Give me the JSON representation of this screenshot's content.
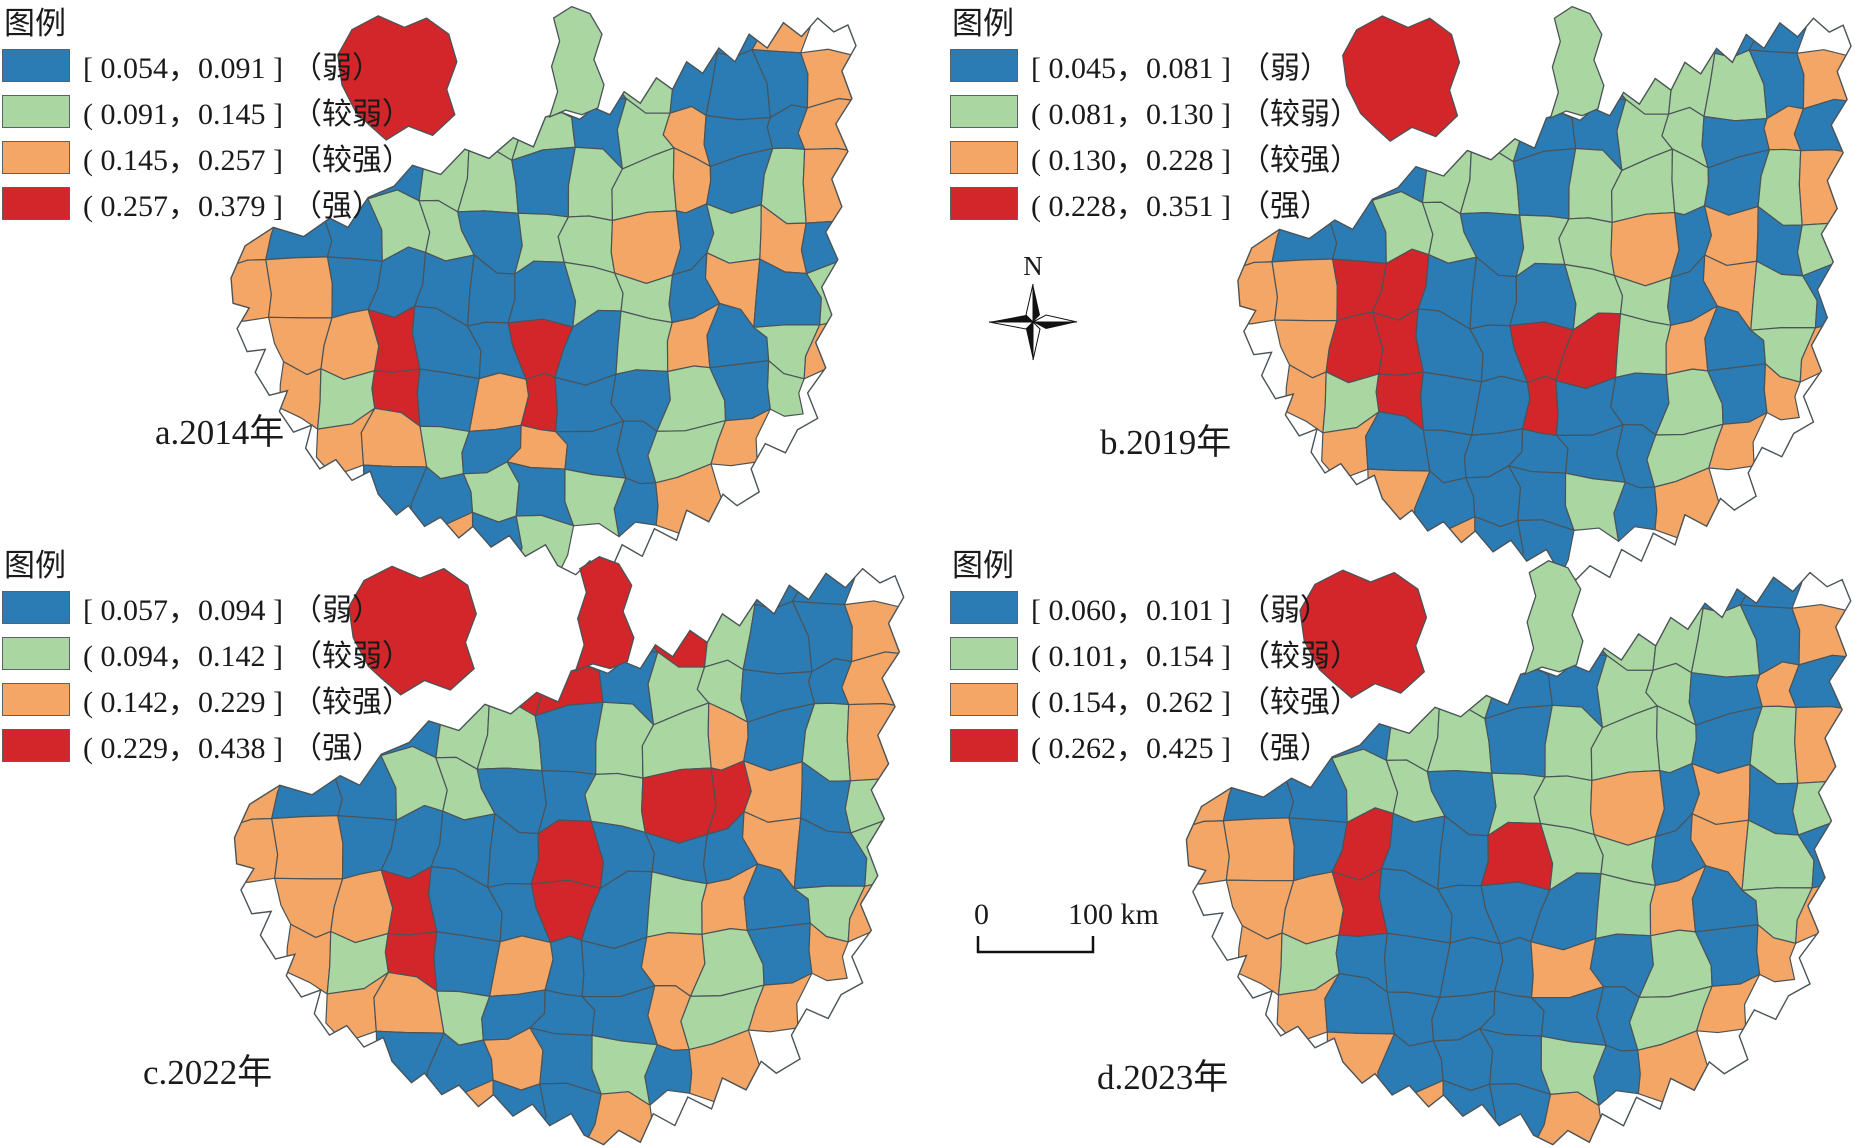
{
  "legend_title": "图例",
  "class_names": [
    "（弱）",
    "（较弱）",
    "（较强）",
    "（强）"
  ],
  "class_colors": [
    "#2B7CB5",
    "#A9D6A1",
    "#F4A666",
    "#D2262A"
  ],
  "border_color": "#4A5357",
  "compass_label": "N",
  "scale_bar": {
    "zero": "0",
    "distance": "100 km"
  },
  "maps": [
    {
      "id": "a",
      "label": "a.2014年",
      "ranges": [
        "[ 0.054，0.091 ]",
        "( 0.091，0.145 ]",
        "( 0.145，0.257 ]",
        "( 0.257，0.379 ]"
      ],
      "tongue": "1",
      "nw_blob": "3",
      "grid": [
        "........0102.",
        ".....1.010002",
        "...2211012002",
        "..00110112012",
        "2001101120120",
        "2200000110201",
        ".223003012012",
        ".21302300101.",
        "..221020012..",
        "...0010102...",
        "....201......"
      ]
    },
    {
      "id": "b",
      "label": "b.2019年",
      "ranges": [
        "[ 0.045，0.081 ]",
        "( 0.081，0.130 ]",
        "( 0.130，0.228 ]",
        "( 0.228，0.351 ]"
      ],
      "tongue": "1",
      "nw_blob": "3",
      "grid": [
        "........1100.",
        ".....1.011102",
        "...2110011020",
        "..00110111012",
        "2001101120201",
        "2233000110210",
        ".233003312012",
        ".21300300102.",
        "..200000012..",
        "...2000102...",
        "....200......"
      ]
    },
    {
      "id": "c",
      "label": "c.2022年",
      "ranges": [
        "[ 0.057，0.094 ]",
        "( 0.094，0.142 ]",
        "( 0.142，0.229 ]",
        "( 0.229，0.438 ]"
      ],
      "tongue": "3",
      "nw_blob": "3",
      "grid": [
        "........3300.",
        ".....3.031002",
        "...2233011002",
        "..00110112012",
        "2001100133201",
        "2200003000201",
        ".223003012012",
        ".21302002102.",
        "..221000212..",
        "...0020102...",
        "....2002....."
      ]
    },
    {
      "id": "d",
      "label": "d.2023年",
      "ranges": [
        "[ 0.060，0.101 ]",
        "( 0.101，0.154 ]",
        "( 0.154，0.262 ]",
        "( 0.262，0.425 ]"
      ],
      "tongue": "1",
      "nw_blob": "3",
      "grid": [
        "........1100.",
        ".....1.011102",
        "...2110011020",
        "..00110111012",
        "2001101120201",
        "2203003110210",
        ".223000012012",
        ".21000020102.",
        "..200000012..",
        "...2000102...",
        "....2002....."
      ]
    }
  ]
}
